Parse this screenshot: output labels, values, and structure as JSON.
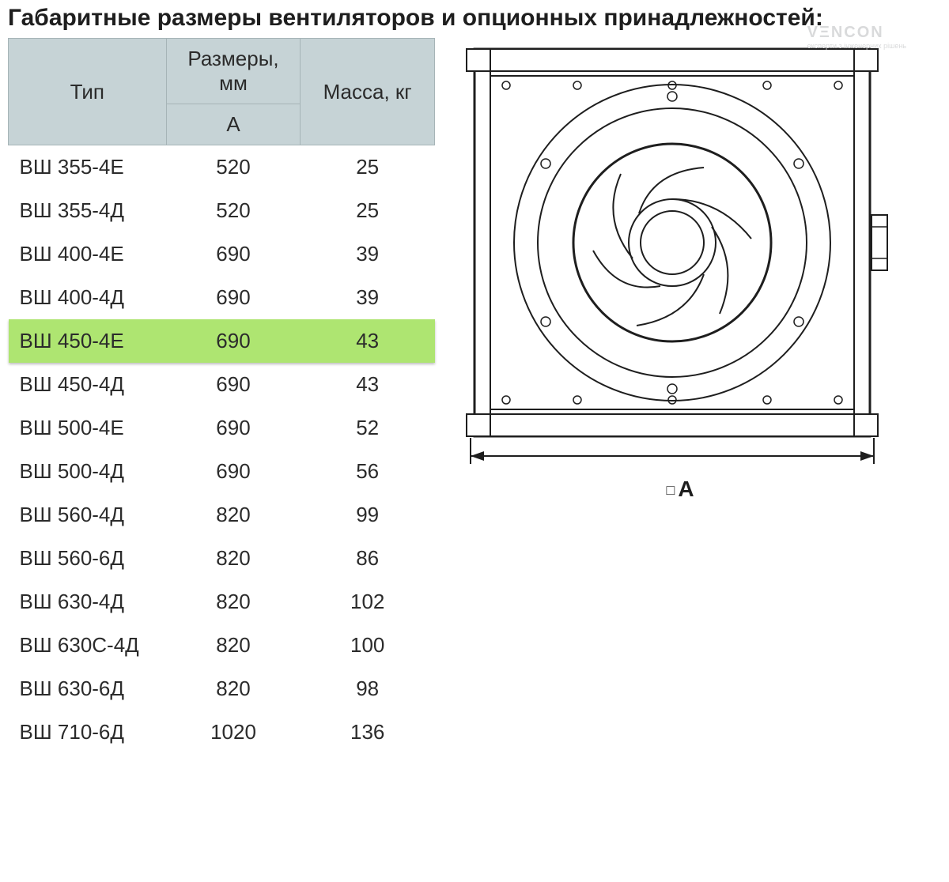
{
  "title": "Габаритные размеры вентиляторов и опционных принадлежностей:",
  "watermark": {
    "brand": "VΞNCON",
    "tagline": "експерти з інженерних рішень"
  },
  "table": {
    "columns": {
      "type": "Тип",
      "size": "Размеры, мм",
      "size_sub": "A",
      "mass": "Масса, кг"
    },
    "highlight_index": 4,
    "highlight_color": "#aee571",
    "header_bg": "#c6d3d6",
    "header_border": "#a6b4b7",
    "rows": [
      {
        "type": "ВШ 355-4Е",
        "size": "520",
        "mass": "25"
      },
      {
        "type": "ВШ 355-4Д",
        "size": "520",
        "mass": "25"
      },
      {
        "type": "ВШ 400-4Е",
        "size": "690",
        "mass": "39"
      },
      {
        "type": "ВШ 400-4Д",
        "size": "690",
        "mass": "39"
      },
      {
        "type": "ВШ 450-4Е",
        "size": "690",
        "mass": "43"
      },
      {
        "type": "ВШ 450-4Д",
        "size": "690",
        "mass": "43"
      },
      {
        "type": "ВШ 500-4Е",
        "size": "690",
        "mass": "52"
      },
      {
        "type": "ВШ 500-4Д",
        "size": "690",
        "mass": "56"
      },
      {
        "type": "ВШ 560-4Д",
        "size": "820",
        "mass": "99"
      },
      {
        "type": "ВШ 560-6Д",
        "size": "820",
        "mass": "86"
      },
      {
        "type": "ВШ 630-4Д",
        "size": "820",
        "mass": "102"
      },
      {
        "type": "ВШ 630С-4Д",
        "size": "820",
        "mass": "100"
      },
      {
        "type": "ВШ 630-6Д",
        "size": "820",
        "mass": "98"
      },
      {
        "type": "ВШ 710-6Д",
        "size": "1020",
        "mass": "136"
      }
    ]
  },
  "diagram": {
    "dimension_label": "A",
    "dimension_prefix": "□",
    "stroke": "#1e1e1e",
    "stroke_width": 2,
    "bg": "#ffffff"
  }
}
